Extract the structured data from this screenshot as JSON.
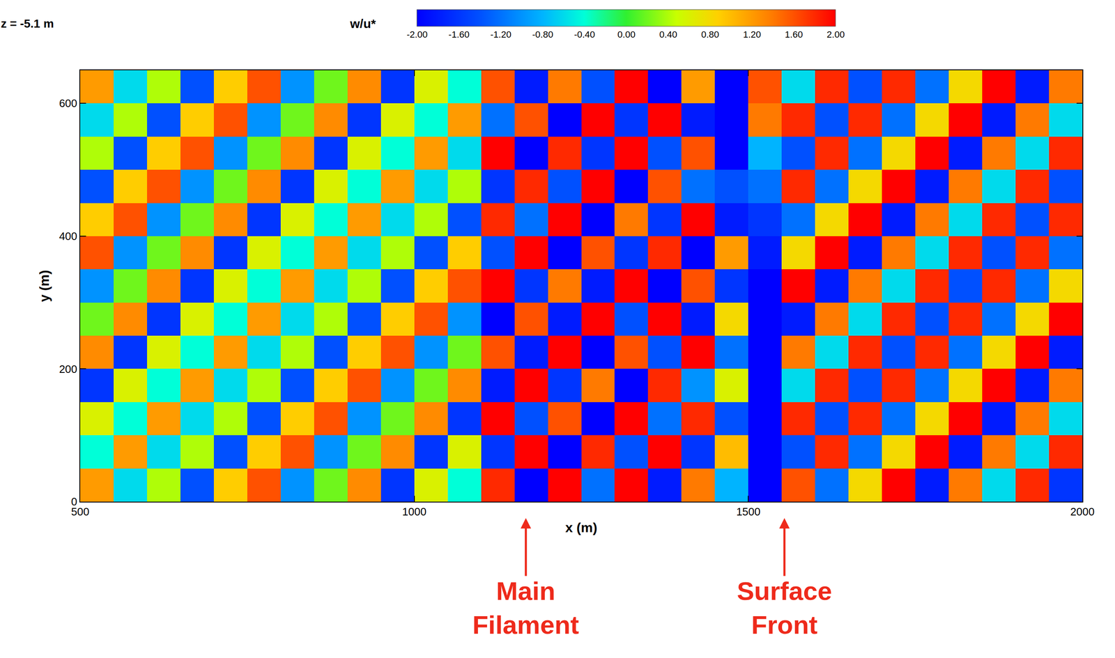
{
  "chart_data": {
    "type": "heatmap",
    "x_label": "x (m)",
    "y_label": "y (m)",
    "xlim": [
      500,
      2000
    ],
    "ylim": [
      0,
      650
    ],
    "xticks": [
      500,
      1000,
      1500,
      2000
    ],
    "yticks": [
      0,
      200,
      400,
      600
    ],
    "annotations": [
      {
        "text": "z = -5.1 m"
      },
      {
        "text": "Main Filament",
        "x": 1167
      },
      {
        "text": "Surface Front",
        "x": 1554
      }
    ],
    "colorbar": {
      "title": "w/u*",
      "range": [
        -2,
        2
      ],
      "ticks": [
        {
          "value": -2,
          "label": "-2.00"
        },
        {
          "value": -1.6,
          "label": "-1.60"
        },
        {
          "value": -1.2,
          "label": "-1.20"
        },
        {
          "value": -0.8,
          "label": "-0.80"
        },
        {
          "value": -0.4,
          "label": "-0.40"
        },
        {
          "value": 0,
          "label": "0.00"
        },
        {
          "value": 0.4,
          "label": "0.40"
        },
        {
          "value": 0.8,
          "label": "0.80"
        },
        {
          "value": 1.2,
          "label": "1.20"
        },
        {
          "value": 1.6,
          "label": "1.60"
        },
        {
          "value": 2,
          "label": "2.00"
        }
      ]
    },
    "x": [
      525,
      575,
      625,
      675,
      725,
      775,
      825,
      875,
      925,
      975,
      1025,
      1075,
      1125,
      1175,
      1225,
      1275,
      1325,
      1375,
      1425,
      1475,
      1525,
      1575,
      1625,
      1675,
      1725,
      1775,
      1825,
      1875,
      1925,
      1975
    ],
    "y": [
      25,
      75,
      125,
      175,
      225,
      275,
      325,
      375,
      425,
      475,
      525,
      575,
      625
    ],
    "z": [
      [
        1.2,
        -0.6,
        0.4,
        -1.4,
        0.9,
        1.6,
        -1.0,
        0.2,
        1.3,
        -1.6,
        0.6,
        -0.4,
        1.8,
        -2.0,
        2.0,
        -1.2,
        2.0,
        -1.8,
        1.4,
        -0.8,
        -2.0,
        1.6,
        -1.2,
        0.8,
        2.0,
        -1.8,
        1.4,
        -0.6,
        1.8,
        -1.6
      ],
      [
        -0.4,
        1.2,
        -0.6,
        0.4,
        -1.4,
        0.9,
        1.6,
        -1.0,
        0.2,
        1.3,
        -1.6,
        0.6,
        -1.6,
        2.0,
        -2.0,
        1.8,
        -1.4,
        2.0,
        -1.6,
        1.0,
        -2.0,
        -1.4,
        1.8,
        -1.2,
        0.8,
        2.0,
        -1.8,
        1.4,
        -0.6,
        1.8
      ],
      [
        0.6,
        -0.4,
        1.2,
        -0.6,
        0.4,
        -1.4,
        0.9,
        1.6,
        -1.0,
        0.2,
        1.3,
        -1.6,
        2.0,
        -1.4,
        1.6,
        -2.0,
        2.0,
        -1.2,
        1.8,
        -1.4,
        -2.0,
        1.8,
        -1.4,
        1.8,
        -1.2,
        0.8,
        2.0,
        -1.8,
        1.4,
        -0.6
      ],
      [
        -1.6,
        0.6,
        -0.4,
        1.2,
        -0.6,
        0.4,
        -1.4,
        0.9,
        1.6,
        -1.0,
        0.2,
        1.3,
        -1.8,
        2.0,
        -1.6,
        1.4,
        -2.0,
        1.8,
        -1.0,
        0.6,
        -2.0,
        -0.6,
        1.8,
        -1.4,
        1.8,
        -1.2,
        0.8,
        2.0,
        -1.8,
        1.4
      ],
      [
        1.3,
        -1.6,
        0.6,
        -0.4,
        1.2,
        -0.6,
        0.4,
        -1.4,
        0.9,
        1.6,
        -1.0,
        0.2,
        1.6,
        -1.8,
        2.0,
        -2.0,
        1.6,
        -1.4,
        2.0,
        -1.2,
        -2.0,
        1.4,
        -0.6,
        1.8,
        -1.4,
        1.8,
        -1.2,
        0.8,
        2.0,
        -1.8
      ],
      [
        0.2,
        1.3,
        -1.6,
        0.6,
        -0.4,
        1.2,
        -0.6,
        0.4,
        -1.4,
        0.9,
        1.6,
        -1.0,
        -2.0,
        1.6,
        -1.8,
        2.0,
        -1.4,
        2.0,
        -1.8,
        0.8,
        -2.0,
        -1.8,
        1.4,
        -0.6,
        1.8,
        -1.4,
        1.8,
        -1.2,
        0.8,
        2.0
      ],
      [
        -1.0,
        0.2,
        1.3,
        -1.6,
        0.6,
        -0.4,
        1.2,
        -0.6,
        0.4,
        -1.4,
        0.9,
        1.6,
        2.0,
        -1.6,
        1.4,
        -1.8,
        2.0,
        -2.0,
        1.6,
        -1.6,
        -2.0,
        2.0,
        -1.8,
        1.4,
        -0.6,
        1.8,
        -1.4,
        1.8,
        -1.2,
        0.8
      ],
      [
        1.6,
        -1.0,
        0.2,
        1.3,
        -1.6,
        0.6,
        -0.4,
        1.2,
        -0.6,
        0.4,
        -1.4,
        0.9,
        -1.4,
        2.0,
        -2.0,
        1.6,
        -1.6,
        1.8,
        -2.0,
        1.2,
        -1.8,
        0.8,
        2.0,
        -1.8,
        1.4,
        -0.6,
        1.8,
        -1.4,
        1.8,
        -1.2
      ],
      [
        0.9,
        1.6,
        -1.0,
        0.2,
        1.3,
        -1.6,
        0.6,
        -0.4,
        1.2,
        -0.6,
        0.4,
        -1.4,
        1.8,
        -1.2,
        2.0,
        -2.0,
        1.4,
        -1.6,
        2.0,
        -1.8,
        -1.6,
        -1.2,
        0.8,
        2.0,
        -1.8,
        1.4,
        -0.6,
        1.8,
        -1.4,
        1.8
      ],
      [
        -1.4,
        0.9,
        1.6,
        -1.0,
        0.2,
        1.3,
        -1.6,
        0.6,
        -0.4,
        1.2,
        -0.6,
        0.4,
        -1.6,
        1.8,
        -1.4,
        2.0,
        -2.0,
        1.6,
        -1.2,
        -1.4,
        -1.2,
        1.8,
        -1.2,
        0.8,
        2.0,
        -1.8,
        1.4,
        -0.6,
        1.8,
        -1.4
      ],
      [
        0.4,
        -1.4,
        0.9,
        1.6,
        -1.0,
        0.2,
        1.3,
        -1.6,
        0.6,
        -0.4,
        1.2,
        -0.6,
        2.0,
        -2.0,
        1.8,
        -1.6,
        2.0,
        -1.4,
        1.6,
        -2.0,
        -0.8,
        -1.4,
        1.8,
        -1.2,
        0.8,
        2.0,
        -1.8,
        1.4,
        -0.6,
        1.8
      ],
      [
        -0.6,
        0.4,
        -1.4,
        0.9,
        1.6,
        -1.0,
        0.2,
        1.3,
        -1.6,
        0.6,
        -0.4,
        1.2,
        -1.2,
        1.6,
        -2.0,
        2.0,
        -1.6,
        2.0,
        -1.8,
        -2.0,
        1.4,
        1.8,
        -1.4,
        1.8,
        -1.2,
        0.8,
        2.0,
        -1.8,
        1.4,
        -0.6
      ],
      [
        1.2,
        -0.6,
        0.4,
        -1.4,
        0.9,
        1.6,
        -1.0,
        0.2,
        1.3,
        -1.6,
        0.6,
        -0.4,
        1.6,
        -1.8,
        1.4,
        -1.4,
        2.0,
        -2.0,
        1.2,
        -2.0,
        1.6,
        -0.6,
        1.8,
        -1.4,
        1.8,
        -1.2,
        0.8,
        2.0,
        -1.8,
        1.4
      ]
    ]
  }
}
